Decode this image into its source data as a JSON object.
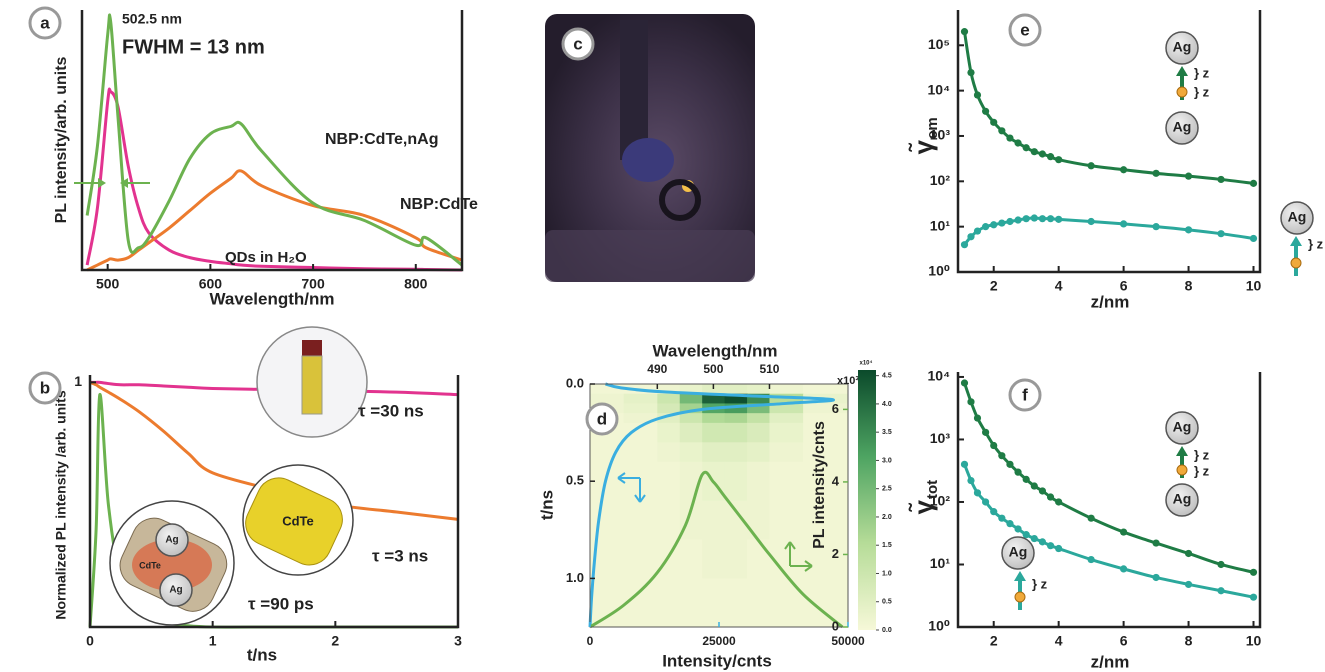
{
  "chart_data": [
    {
      "type": "line",
      "label": "a",
      "xlabel": "Wavelength/nm",
      "ylabel": "PL intensity/arb. units",
      "annotations": [
        "502.5 nm",
        "FWHM = 13 nm"
      ],
      "x": [
        480,
        490,
        500,
        503,
        510,
        520,
        530,
        540,
        560,
        580,
        600,
        620,
        630,
        650,
        700,
        750,
        800,
        810,
        845
      ],
      "xlim": [
        475,
        845
      ],
      "xticks": [
        500,
        600,
        700,
        800
      ],
      "ylim": [
        0,
        1.05
      ],
      "series": [
        {
          "name": "QDs in H₂O",
          "color": "#e2338f",
          "values": [
            0.02,
            0.25,
            0.68,
            0.72,
            0.66,
            0.42,
            0.25,
            0.15,
            0.08,
            0.05,
            0.035,
            0.025,
            0.02,
            0.015,
            0.01,
            0.005,
            0.003,
            0.002,
            0
          ]
        },
        {
          "name": "NBP:CdTe",
          "color": "#ec7b2e",
          "values": [
            0,
            0.02,
            0.04,
            0.045,
            0.04,
            0.05,
            0.08,
            0.11,
            0.17,
            0.24,
            0.31,
            0.37,
            0.4,
            0.34,
            0.26,
            0.22,
            0.13,
            0.09,
            0.04
          ]
        },
        {
          "name": "NBP:CdTe,nAg",
          "color": "#6cb24f",
          "values": [
            0.22,
            0.5,
            0.95,
            1.0,
            0.62,
            0.12,
            0.09,
            0.13,
            0.28,
            0.45,
            0.55,
            0.58,
            0.59,
            0.48,
            0.27,
            0.2,
            0.1,
            0.13,
            0.02
          ]
        }
      ]
    },
    {
      "type": "line",
      "label": "b",
      "xlabel": "t/ns",
      "ylabel": "Normalized PL intensity /arb. units",
      "annotations": [
        "CdTe",
        "Ag",
        "CdTe",
        "Ag"
      ],
      "x": [
        0,
        0.05,
        0.08,
        0.15,
        0.25,
        0.4,
        0.6,
        0.8,
        1,
        1.5,
        2,
        2.5,
        3
      ],
      "xlim": [
        0,
        3
      ],
      "xticks": [
        0,
        1,
        2,
        3
      ],
      "ylim": [
        0,
        1.03
      ],
      "yticks": [
        1
      ],
      "series": [
        {
          "name": "τ =30 ns",
          "color": "#e2338f",
          "values": [
            1,
            1,
            1,
            0.995,
            0.99,
            0.99,
            0.985,
            0.98,
            0.975,
            0.97,
            0.965,
            0.96,
            0.95
          ]
        },
        {
          "name": "τ =3 ns",
          "color": "#ec7b2e",
          "values": [
            1,
            0.99,
            0.98,
            0.96,
            0.93,
            0.88,
            0.8,
            0.71,
            0.63,
            0.56,
            0.5,
            0.47,
            0.44
          ]
        },
        {
          "name": "τ =90 ps",
          "color": "#6cb24f",
          "values": [
            0,
            0.4,
            0.95,
            0.5,
            0.2,
            0.07,
            0.02,
            0.005,
            0,
            0,
            0,
            0,
            0
          ]
        }
      ]
    },
    {
      "type": "image",
      "label": "c"
    },
    {
      "type": "heatmap",
      "label": "d",
      "xlabel": "Wavelength/nm",
      "ylabel": "t/ns",
      "x2label": "Intensity/cnts",
      "y2label": "PL intensity/cnts",
      "y2_unit": "x10³",
      "colorbar_unit": "x10⁴",
      "xlim": [
        478,
        524
      ],
      "xticks": [
        490,
        500,
        510
      ],
      "ylim": [
        0,
        1.25
      ],
      "y_inverted": true,
      "yticks": [
        {
          "value": 0,
          "label": "0.0"
        },
        0.5,
        {
          "value": 1,
          "label": "1.0"
        }
      ],
      "x2lim": [
        0,
        50000
      ],
      "x2ticks": [
        0,
        25000,
        50000
      ],
      "x2color": "#3aaee0",
      "y2lim": [
        0,
        6.7
      ],
      "y2ticks": [
        0,
        2,
        4,
        6
      ],
      "y2color": "#6cb24f",
      "bins_x": [
        478,
        484,
        490,
        494,
        498,
        502,
        506,
        510,
        516,
        524
      ],
      "bins_y": [
        0,
        0.05,
        0.1,
        0.15,
        0.2,
        0.3,
        0.4,
        0.6,
        0.8,
        1.0,
        1.25
      ],
      "z": [
        [
          0.1,
          0.1,
          0.2,
          0.3,
          0.5,
          0.5,
          0.4,
          0.2,
          0.1
        ],
        [
          0.2,
          0.4,
          1.0,
          2.5,
          4.2,
          4.5,
          3.5,
          1.5,
          0.3
        ],
        [
          0.2,
          0.3,
          0.8,
          1.8,
          3.0,
          3.2,
          2.4,
          1.0,
          0.2
        ],
        [
          0.1,
          0.2,
          0.5,
          1.0,
          1.6,
          1.7,
          1.2,
          0.5,
          0.1
        ],
        [
          0.1,
          0.1,
          0.3,
          0.6,
          0.9,
          0.9,
          0.7,
          0.3,
          0.1
        ],
        [
          0.1,
          0.1,
          0.2,
          0.3,
          0.5,
          0.5,
          0.4,
          0.2,
          0.1
        ],
        [
          0.1,
          0.1,
          0.1,
          0.2,
          0.3,
          0.3,
          0.2,
          0.1,
          0.1
        ],
        [
          0.1,
          0.1,
          0.1,
          0.2,
          0.2,
          0.2,
          0.2,
          0.1,
          0.1
        ],
        [
          0.1,
          0.1,
          0.1,
          0.1,
          0.2,
          0.2,
          0.1,
          0.1,
          0.1
        ],
        [
          0.1,
          0.1,
          0.1,
          0.1,
          0.1,
          0.1,
          0.1,
          0.1,
          0.1
        ]
      ],
      "colormap": [
        "#f6f8d8",
        "#b6dc98",
        "#4ea462",
        "#0b4a2b"
      ],
      "zlim": [
        0,
        4.6
      ],
      "zticks": [
        {
          "value": 0,
          "label": "0.0"
        },
        0.5,
        {
          "value": 1,
          "label": "1.0"
        },
        1.5,
        {
          "value": 2,
          "label": "2.0"
        },
        2.5,
        {
          "value": 3,
          "label": "3.0"
        },
        3.5,
        {
          "value": 4,
          "label": "4.0"
        },
        4.5
      ],
      "decay": {
        "color": "#3aaee0",
        "t": [
          0,
          0.02,
          0.04,
          0.06,
          0.08,
          0.1,
          0.13,
          0.18,
          0.25,
          0.35,
          0.5,
          0.7,
          0.9,
          1.1,
          1.25
        ],
        "values": [
          3000,
          6000,
          14000,
          30000,
          47000,
          38000,
          22000,
          13000,
          8000,
          5000,
          3000,
          1700,
          900,
          300,
          0
        ]
      },
      "spectrum": {
        "color": "#6cb24f",
        "x": [
          478,
          484,
          490,
          495,
          498,
          500,
          502,
          506,
          510,
          516,
          523
        ],
        "values": [
          0,
          0.6,
          1.5,
          2.8,
          4.2,
          4.0,
          3.6,
          2.8,
          2.0,
          0.9,
          0
        ]
      }
    },
    {
      "type": "line",
      "label": "e",
      "xlabel": "z/nm",
      "ylabel": "γ̃",
      "ylabel_sub": "em",
      "ylog": true,
      "markers": true,
      "annotations": [
        "Ag",
        "} z",
        "} z",
        "Ag",
        "Ag",
        "} z"
      ],
      "x": [
        1.1,
        1.3,
        1.5,
        1.75,
        2,
        2.25,
        2.5,
        2.75,
        3,
        3.25,
        3.5,
        3.75,
        4,
        5,
        6,
        7,
        8,
        9,
        10
      ],
      "xlim": [
        0.9,
        10.2
      ],
      "xticks": [
        2,
        4,
        6,
        8,
        10
      ],
      "ylim": [
        1,
        600000
      ],
      "yticks": [
        {
          "value": 1,
          "label": "10⁰"
        },
        {
          "value": 10,
          "label": "10¹"
        },
        {
          "value": 100,
          "label": "10²"
        },
        {
          "value": 1000,
          "label": "10³"
        },
        {
          "value": 10000,
          "label": "10⁴"
        },
        {
          "value": 100000,
          "label": "10⁵"
        }
      ],
      "series": [
        {
          "color": "#1f7c45",
          "values": [
            200000,
            25000,
            8000,
            3500,
            2000,
            1300,
            900,
            700,
            550,
            450,
            400,
            350,
            300,
            220,
            180,
            150,
            130,
            110,
            90
          ]
        },
        {
          "color": "#2ba89c",
          "values": [
            4,
            6,
            8,
            10,
            11,
            12,
            13,
            14,
            15,
            15.5,
            15,
            15,
            14.5,
            13,
            11.5,
            10,
            8.5,
            7,
            5.5
          ]
        }
      ]
    },
    {
      "type": "line",
      "label": "f",
      "xlabel": "z/nm",
      "ylabel": "γ̃",
      "ylabel_sub": "tot",
      "ylog": true,
      "markers": true,
      "annotations": [
        "Ag",
        "} z",
        "} z",
        "Ag",
        "Ag",
        "} z"
      ],
      "x": [
        1.1,
        1.3,
        1.5,
        1.75,
        2,
        2.25,
        2.5,
        2.75,
        3,
        3.25,
        3.5,
        3.75,
        4,
        5,
        6,
        7,
        8,
        9,
        10
      ],
      "xlim": [
        0.9,
        10.2
      ],
      "xticks": [
        2,
        4,
        6,
        8,
        10
      ],
      "ylim": [
        1,
        12000
      ],
      "yticks": [
        {
          "value": 1,
          "label": "10⁰"
        },
        {
          "value": 10,
          "label": "10¹"
        },
        {
          "value": 100,
          "label": "10²"
        },
        {
          "value": 1000,
          "label": "10³"
        },
        {
          "value": 10000,
          "label": "10⁴"
        }
      ],
      "series": [
        {
          "color": "#1f7c45",
          "values": [
            8000,
            4000,
            2200,
            1300,
            800,
            550,
            400,
            300,
            230,
            180,
            150,
            120,
            100,
            55,
            33,
            22,
            15,
            10,
            7.5
          ]
        },
        {
          "color": "#2ba89c",
          "values": [
            400,
            220,
            140,
            100,
            70,
            55,
            45,
            37,
            30,
            26,
            23,
            20,
            18,
            12,
            8.5,
            6.2,
            4.8,
            3.8,
            3
          ]
        }
      ]
    }
  ]
}
